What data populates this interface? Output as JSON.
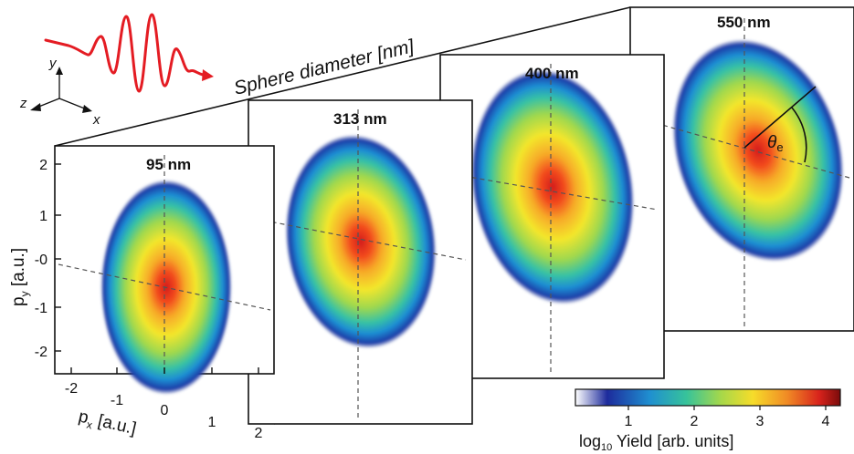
{
  "figure": {
    "axis_title_sphere": "Sphere diameter [nm]",
    "panels": [
      {
        "label": "95 nm"
      },
      {
        "label": "313 nm"
      },
      {
        "label": "400 nm"
      },
      {
        "label": "550 nm"
      }
    ],
    "y_axis": {
      "label_main": "p",
      "label_sub": "y",
      "label_unit": " [a.u.]",
      "ticks": [
        "2",
        "1",
        "-0",
        "-1",
        "-2"
      ]
    },
    "x_axis": {
      "label_main": "p",
      "label_sub": "x",
      "label_unit": " [a.u.]",
      "ticks": [
        "-2",
        "-1",
        "0",
        "1",
        "2"
      ]
    },
    "angle_label": {
      "symbol": "θ",
      "sub": "e"
    },
    "coord_axes": {
      "x": "x",
      "y": "y",
      "z": "z"
    },
    "colorbar": {
      "ticks": [
        "1",
        "2",
        "3",
        "4"
      ],
      "label_prefix": "log",
      "label_sub": "10",
      "label_rest": " Yield [arb. units]",
      "colors": [
        "#ffffff",
        "#1d2b9c",
        "#1f8fd0",
        "#37c39a",
        "#a6d84a",
        "#f6dc2a",
        "#f08a25",
        "#d8231c",
        "#7a0b0b"
      ]
    },
    "pulse_color": "#e41c23"
  }
}
